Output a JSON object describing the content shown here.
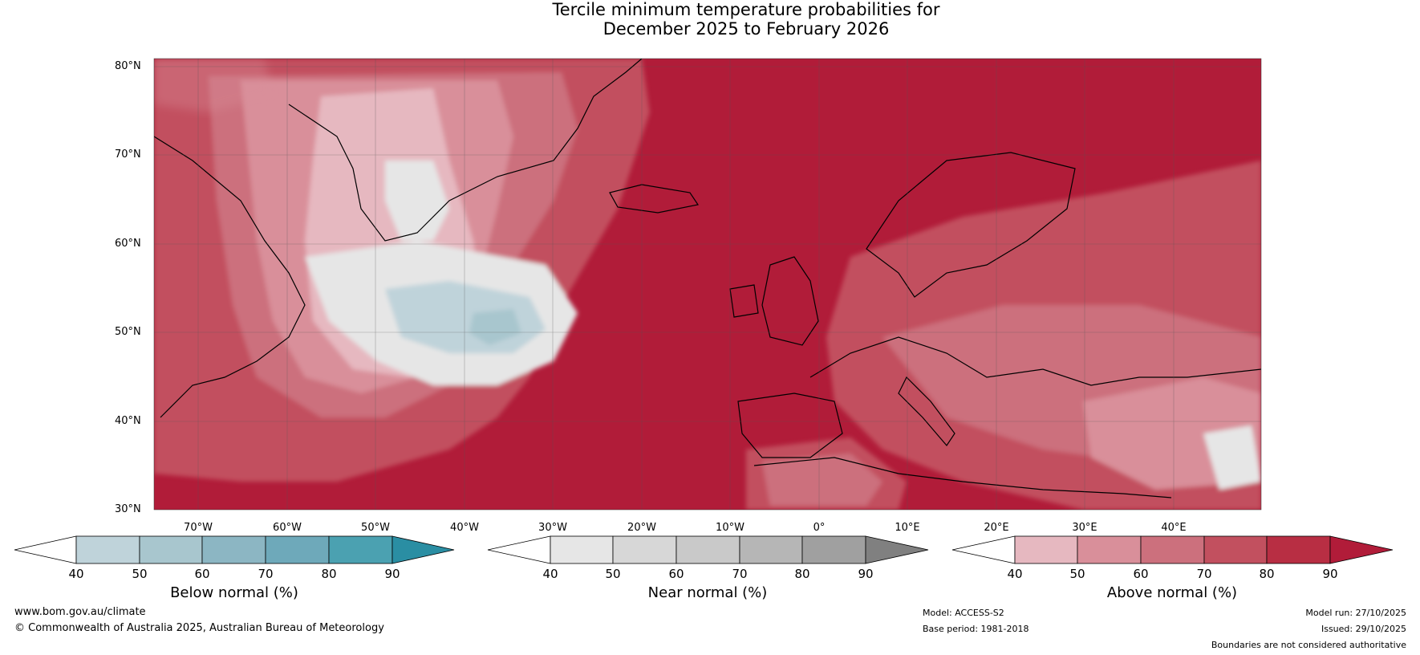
{
  "title": {
    "line1": "Tercile minimum temperature probabilities for",
    "line2": "December 2025 to February 2026"
  },
  "map": {
    "lat_labels": [
      "80°N",
      "70°N",
      "60°N",
      "50°N",
      "40°N",
      "30°N"
    ],
    "lon_labels": [
      "70°W",
      "60°W",
      "50°W",
      "40°W",
      "30°W",
      "20°W",
      "10°W",
      "0°",
      "10°E",
      "20°E",
      "30°E",
      "40°E"
    ],
    "lat_range": [
      30,
      80
    ],
    "lon_range": [
      -75,
      50
    ],
    "dominant_category": "Above normal"
  },
  "colorbars": [
    {
      "label": "Below normal (%)",
      "ticks": [
        "40",
        "50",
        "60",
        "70",
        "80",
        "90"
      ],
      "colors": [
        "#ffffff",
        "#bfd3da",
        "#a8c6ce",
        "#8cb6c3",
        "#6ea9ba",
        "#4ba1b1",
        "#2a8ea3"
      ]
    },
    {
      "label": "Near normal (%)",
      "ticks": [
        "40",
        "50",
        "60",
        "70",
        "80",
        "90"
      ],
      "colors": [
        "#ffffff",
        "#e6e6e6",
        "#d7d7d7",
        "#c9c9c9",
        "#b6b6b6",
        "#a0a0a0",
        "#808080"
      ]
    },
    {
      "label": "Above normal (%)",
      "ticks": [
        "40",
        "50",
        "60",
        "70",
        "80",
        "90"
      ],
      "colors": [
        "#ffffff",
        "#e6b8c0",
        "#d98f9a",
        "#cc707d",
        "#c2505f",
        "#b82e43",
        "#b11c39"
      ]
    }
  ],
  "footer": {
    "website": "www.bom.gov.au/climate",
    "copyright": "© Commonwealth of Australia 2025, Australian Bureau of Meteorology",
    "model": "Model: ACCESS-S2",
    "base_period": "Base period: 1981-2018",
    "model_run": "Model run: 27/10/2025",
    "issued": "Issued: 29/10/2025",
    "disclaimer": "Boundaries are not considered authoritative"
  }
}
